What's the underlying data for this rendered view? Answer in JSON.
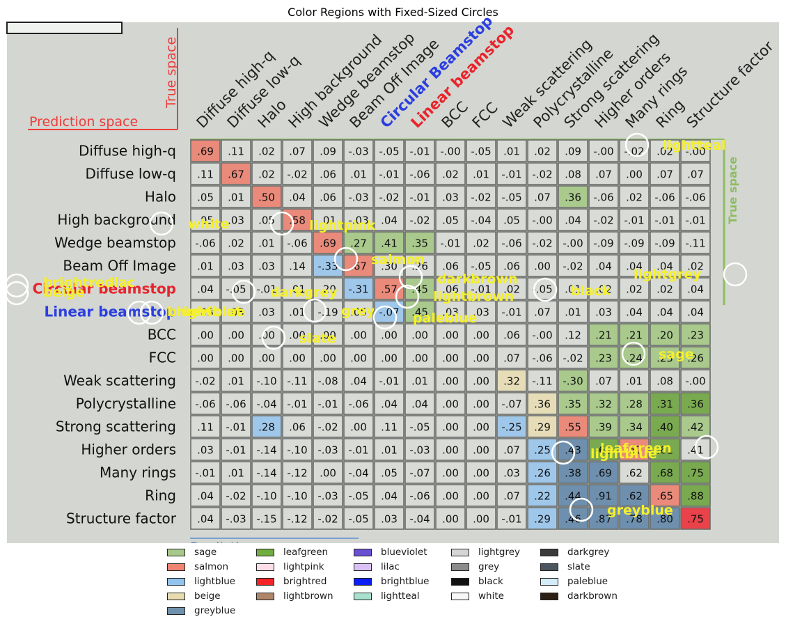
{
  "title": "Color Regions with Fixed-Sized Circles",
  "chart_data": {
    "type": "heatmap",
    "title": "Color Regions with Fixed-Sized Circles",
    "figure_text": {
      "true_space": "True space",
      "prediction_space": "Prediction space",
      "prediction_space_bottom": "Prediction space"
    },
    "columns": [
      {
        "label": "Diffuse high-q",
        "color": "#222222"
      },
      {
        "label": "Diffuse low-q",
        "color": "#222222"
      },
      {
        "label": "Halo",
        "color": "#222222"
      },
      {
        "label": "High background",
        "color": "#222222"
      },
      {
        "label": "Wedge beamstop",
        "color": "#222222"
      },
      {
        "label": "Beam Off Image",
        "color": "#222222"
      },
      {
        "label": "Circular Beamstop",
        "color": "#2b3fe0"
      },
      {
        "label": "Linear beamstop",
        "color": "#e8242c"
      },
      {
        "label": "BCC",
        "color": "#222222"
      },
      {
        "label": "FCC",
        "color": "#222222"
      },
      {
        "label": "Weak scattering",
        "color": "#222222"
      },
      {
        "label": "Polycrystalline",
        "color": "#222222"
      },
      {
        "label": "Strong scattering",
        "color": "#222222"
      },
      {
        "label": "Higher orders",
        "color": "#222222"
      },
      {
        "label": "Many rings",
        "color": "#222222"
      },
      {
        "label": "Ring",
        "color": "#222222"
      },
      {
        "label": "Structure factor",
        "color": "#222222"
      }
    ],
    "rows": [
      {
        "label": "Diffuse high-q",
        "color": "#111111"
      },
      {
        "label": "Diffuse low-q",
        "color": "#111111"
      },
      {
        "label": "Halo",
        "color": "#111111"
      },
      {
        "label": "High background",
        "color": "#111111"
      },
      {
        "label": "Wedge beamstop",
        "color": "#111111"
      },
      {
        "label": "Beam Off Image",
        "color": "#111111"
      },
      {
        "label": "Circular beamstop",
        "color": "#e8242c"
      },
      {
        "label": "Linear beamstop",
        "color": "#2b3fe0"
      },
      {
        "label": "BCC",
        "color": "#111111"
      },
      {
        "label": "FCC",
        "color": "#111111"
      },
      {
        "label": "Weak scattering",
        "color": "#111111"
      },
      {
        "label": "Polycrystalline",
        "color": "#111111"
      },
      {
        "label": "Strong scattering",
        "color": "#111111"
      },
      {
        "label": "Higher orders",
        "color": "#111111"
      },
      {
        "label": "Many rings",
        "color": "#111111"
      },
      {
        "label": "Ring",
        "color": "#111111"
      },
      {
        "label": "Structure factor",
        "color": "#111111"
      }
    ],
    "values": [
      [
        ".69",
        ".11",
        ".02",
        ".07",
        ".09",
        "-.03",
        "-.05",
        "-.01",
        "-.00",
        "-.05",
        ".01",
        ".02",
        ".09",
        "-.00",
        "-.02",
        ".02",
        "-.00"
      ],
      [
        ".11",
        ".67",
        ".02",
        "-.02",
        ".06",
        ".01",
        "-.01",
        "-.06",
        ".02",
        ".01",
        "-.01",
        "-.02",
        ".08",
        ".07",
        ".00",
        ".07",
        ".07"
      ],
      [
        ".05",
        ".01",
        ".50",
        ".04",
        ".06",
        "-.03",
        "-.02",
        "-.01",
        ".03",
        "-.02",
        "-.05",
        ".07",
        ".36",
        "-.06",
        ".02",
        "-.06",
        "-.06"
      ],
      [
        ".05",
        ".03",
        ".05",
        ".58",
        ".01",
        "-.03",
        ".04",
        "-.02",
        ".05",
        "-.04",
        ".05",
        "-.00",
        ".04",
        "-.02",
        "-.01",
        "-.01",
        "-.01"
      ],
      [
        "-.06",
        ".02",
        ".01",
        "-.06",
        ".69",
        ".27",
        ".41",
        ".35",
        "-.01",
        ".02",
        "-.06",
        "-.02",
        "-.00",
        "-.09",
        "-.09",
        "-.09",
        "-.11"
      ],
      [
        ".01",
        ".03",
        ".03",
        ".14",
        "-.33",
        ".67",
        ".30",
        ".26",
        ".06",
        "-.05",
        ".06",
        ".00",
        "-.02",
        ".04",
        ".04",
        ".04",
        ".02"
      ],
      [
        ".04",
        "-.05",
        "-.01",
        ".01",
        ".20",
        "-.31",
        ".57",
        ".45",
        ".06",
        "-.01",
        ".02",
        "-.05",
        ".01",
        ".02",
        ".02",
        ".02",
        ".04"
      ],
      [
        ".03",
        ".03",
        ".03",
        ".01",
        "-.19",
        ".05",
        "-.07",
        ".45",
        ".03",
        ".03",
        "-.01",
        ".07",
        ".01",
        ".03",
        ".04",
        ".04",
        ".04"
      ],
      [
        ".00",
        ".00",
        ".00",
        ".00",
        ".00",
        ".00",
        ".00",
        ".00",
        ".00",
        ".00",
        ".06",
        "-.00",
        ".12",
        ".21",
        ".21",
        ".20",
        ".23"
      ],
      [
        ".00",
        ".00",
        ".00",
        ".00",
        ".00",
        ".00",
        ".00",
        ".00",
        ".00",
        ".00",
        ".07",
        "-.06",
        "-.02",
        ".23",
        ".24",
        ".25",
        ".26"
      ],
      [
        "-.02",
        ".01",
        "-.10",
        "-.11",
        "-.08",
        ".04",
        "-.01",
        ".01",
        ".00",
        ".00",
        ".32",
        "-.11",
        "-.30",
        ".07",
        ".01",
        ".08",
        "-.00"
      ],
      [
        "-.06",
        "-.06",
        "-.04",
        "-.01",
        "-.01",
        "-.06",
        ".04",
        ".04",
        ".00",
        ".00",
        "-.07",
        ".36",
        ".35",
        ".32",
        ".28",
        ".31",
        ".36"
      ],
      [
        ".11",
        "-.01",
        ".28",
        ".06",
        "-.02",
        ".00",
        ".11",
        "-.05",
        ".00",
        ".00",
        "-.25",
        ".29",
        ".55",
        ".39",
        ".34",
        ".40",
        ".42"
      ],
      [
        ".03",
        "-.01",
        "-.14",
        "-.10",
        "-.03",
        "-.01",
        ".01",
        "-.03",
        ".00",
        ".00",
        ".07",
        ".25",
        ".43",
        ".66",
        ".57",
        ".61",
        ".41"
      ],
      [
        "-.01",
        ".01",
        "-.14",
        "-.12",
        ".00",
        "-.04",
        ".05",
        "-.07",
        ".00",
        ".00",
        ".03",
        ".26",
        ".38",
        ".69",
        ".62",
        ".68",
        ".75"
      ],
      [
        ".04",
        "-.02",
        "-.10",
        "-.10",
        "-.03",
        "-.05",
        ".04",
        "-.06",
        ".00",
        ".00",
        ".07",
        ".22",
        ".44",
        ".91",
        ".62",
        ".65",
        ".88"
      ],
      [
        ".04",
        "-.03",
        "-.15",
        "-.12",
        "-.02",
        "-.05",
        ".03",
        "-.04",
        ".00",
        ".00",
        "-.01",
        ".29",
        ".46",
        ".87",
        ".78",
        ".80",
        ".75"
      ]
    ],
    "cell_colors": {
      "#e98a7a": [
        [
          0,
          0
        ],
        [
          1,
          1
        ],
        [
          2,
          2
        ],
        [
          3,
          3
        ],
        [
          4,
          4
        ],
        [
          5,
          5
        ],
        [
          6,
          6
        ],
        [
          12,
          12
        ],
        [
          13,
          14
        ],
        [
          14,
          15
        ],
        [
          15,
          15
        ],
        [
          16,
          16
        ]
      ],
      "#a9c98d": [
        [
          2,
          12
        ],
        [
          4,
          5
        ],
        [
          4,
          6
        ],
        [
          4,
          7
        ],
        [
          6,
          7
        ],
        [
          7,
          7
        ],
        [
          8,
          13
        ],
        [
          8,
          14
        ],
        [
          8,
          15
        ],
        [
          8,
          16
        ],
        [
          9,
          13
        ],
        [
          9,
          14
        ],
        [
          9,
          15
        ],
        [
          9,
          16
        ],
        [
          10,
          12
        ],
        [
          11,
          12
        ],
        [
          11,
          13
        ],
        [
          11,
          14
        ],
        [
          12,
          13
        ],
        [
          12,
          14
        ],
        [
          12,
          15
        ],
        [
          12,
          16
        ]
      ],
      "#7aaa50": [
        [
          11,
          15
        ],
        [
          11,
          16
        ],
        [
          12,
          15
        ],
        [
          13,
          13
        ],
        [
          13,
          15
        ],
        [
          14,
          15
        ],
        [
          14,
          16
        ],
        [
          15,
          16
        ]
      ],
      "#9fc7ea": [
        [
          5,
          4
        ],
        [
          6,
          5
        ],
        [
          7,
          6
        ],
        [
          12,
          2
        ],
        [
          12,
          10
        ],
        [
          13,
          11
        ],
        [
          14,
          11
        ],
        [
          15,
          11
        ],
        [
          16,
          11
        ]
      ],
      "#e6ddb8": [
        [
          10,
          10
        ],
        [
          11,
          11
        ],
        [
          12,
          11
        ]
      ],
      "#6e8fae": [
        [
          13,
          12
        ],
        [
          14,
          12
        ],
        [
          14,
          13
        ],
        [
          15,
          12
        ],
        [
          15,
          13
        ],
        [
          15,
          14
        ],
        [
          16,
          12
        ],
        [
          16,
          13
        ],
        [
          16,
          14
        ],
        [
          16,
          15
        ]
      ],
      "#e9424a": [
        [
          16,
          16
        ]
      ]
    },
    "circle_labels": [
      {
        "text": "lightteal"
      },
      {
        "text": "white"
      },
      {
        "text": "lightpink"
      },
      {
        "text": "salmon"
      },
      {
        "text": "brightredlac"
      },
      {
        "text": "beige"
      },
      {
        "text": "darkbrown"
      },
      {
        "text": "lightgrey"
      },
      {
        "text": "darkgrey"
      },
      {
        "text": "lightbrown"
      },
      {
        "text": "black"
      },
      {
        "text": "blueviolet"
      },
      {
        "text": "brightblue"
      },
      {
        "text": "grey"
      },
      {
        "text": "paleblue"
      },
      {
        "text": "slate"
      },
      {
        "text": "sage"
      },
      {
        "text": "leafgreen"
      },
      {
        "text": "lightblue"
      },
      {
        "text": "greyblue"
      }
    ]
  },
  "legend": [
    {
      "label": "sage",
      "color": "#a6c98b"
    },
    {
      "label": "salmon",
      "color": "#f08472"
    },
    {
      "label": "lightblue",
      "color": "#93c4ee"
    },
    {
      "label": "beige",
      "color": "#e6dcb0"
    },
    {
      "label": "greyblue",
      "color": "#6f91ab"
    },
    {
      "label": "leafgreen",
      "color": "#6fad3e"
    },
    {
      "label": "lightpink",
      "color": "#ffdde6"
    },
    {
      "label": "brightred",
      "color": "#f52328"
    },
    {
      "label": "lightbrown",
      "color": "#b0866a"
    },
    {
      "label": "blueviolet",
      "color": "#6a4fd0"
    },
    {
      "label": "lilac",
      "color": "#d9c1f5"
    },
    {
      "label": "brightblue",
      "color": "#0b1ef5"
    },
    {
      "label": "lightteal",
      "color": "#a8e2cf"
    },
    {
      "label": "lightgrey",
      "color": "#d5d5d5"
    },
    {
      "label": "grey",
      "color": "#8c8c8c"
    },
    {
      "label": "black",
      "color": "#111111"
    },
    {
      "label": "white",
      "color": "#f7f7f7"
    },
    {
      "label": "darkgrey",
      "color": "#3a3a3a"
    },
    {
      "label": "slate",
      "color": "#4b5560"
    },
    {
      "label": "paleblue",
      "color": "#d3ecf8"
    },
    {
      "label": "darkbrown",
      "color": "#2e1f14"
    }
  ]
}
